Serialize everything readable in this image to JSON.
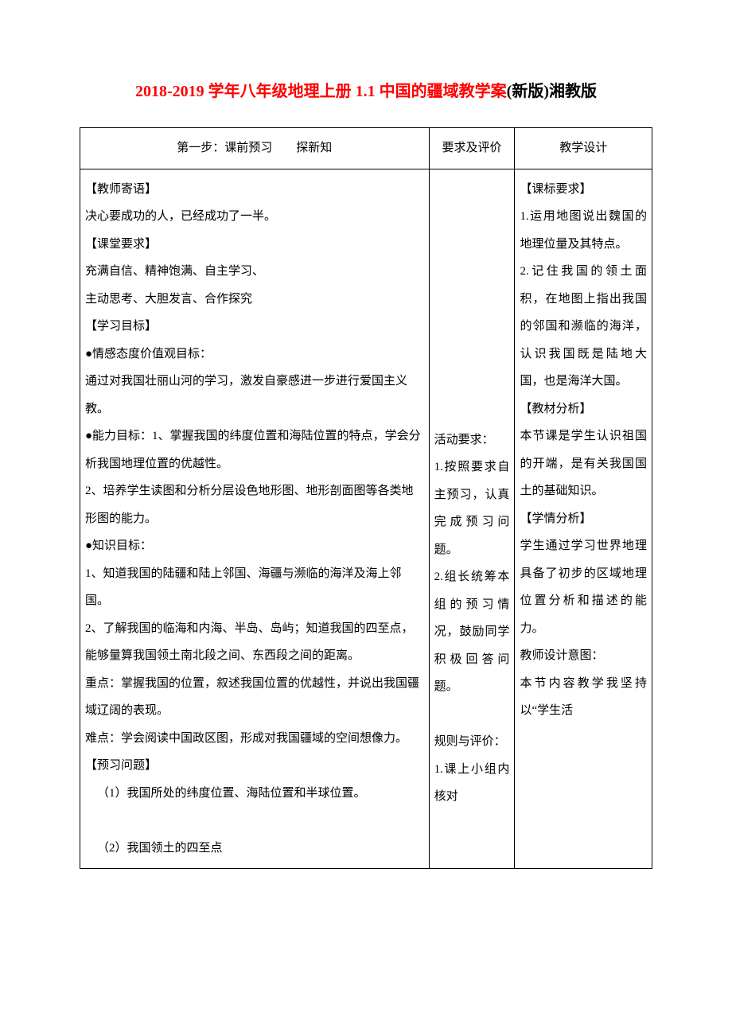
{
  "title": {
    "red_part": "2018-2019 学年八年级地理上册 1.1 中国的疆域教学案",
    "black_part": "(新版)湘教版"
  },
  "table": {
    "header": {
      "col1": "第一步：课前预习　　探新知",
      "col2": "要求及评价",
      "col3": "教学设计"
    },
    "body": {
      "col1": {
        "section1_title": "【教师寄语】",
        "section1_text": "决心要成功的人，已经成功了一半。",
        "section2_title": "【课堂要求】",
        "section2_text1": "充满自信、精神饱满、自主学习、",
        "section2_text2": "主动思考、大胆发言、合作探究",
        "section3_title": "【学习目标】",
        "emotion_title": "●情感态度价值观目标：",
        "emotion_text": "通过对我国壮丽山河的学习，激发自豪感进一步进行爱国主义教。",
        "ability_title": "●能力目标：1、掌握我国的纬度位置和海陆位置的特点，学会分析我国地理位置的优越性。",
        "ability_text2": "2、培养学生读图和分析分层设色地形图、地形剖面图等各类地形图的能力。",
        "knowledge_title": "●知识目标：",
        "knowledge_text1": "1、知道我国的陆疆和陆上邻国、海疆与濒临的海洋及海上邻国。",
        "knowledge_text2": "2、了解我国的临海和内海、半岛、岛屿；知道我国的四至点，能够量算我国领土南北段之间、东西段之间的距离。",
        "key_text": "重点：掌握我国的位置，叙述我国位置的优越性，并说出我国疆域辽阔的表现。",
        "difficult_text": "难点：学会阅读中国政区图，形成对我国疆域的空间想像力。",
        "preview_title": "【预习问题】",
        "preview_q1": "（1）我国所处的纬度位置、海陆位置和半球位置。",
        "preview_q2": "（2）我国领土的四至点"
      },
      "col2": {
        "activity_title": "活动要求：",
        "activity_text1": "1.按照要求自主预习，认真完成预习问题。",
        "activity_text2": "2.组长统筹本组的预习情况，鼓励同学积极回答问题。",
        "rule_title": "规则与评价：",
        "rule_text1": "1.课上小组内核对"
      },
      "col3": {
        "standard_title": "【课标要求】",
        "standard_text1": "1.运用地图说出魏国的地理位量及其特点。",
        "standard_text2": "2.记住我国的领土面积，在地图上指出我国的邻国和濒临的海洋，认识我国既是陆地大国，也是海洋大国。",
        "material_title": "【教材分析】",
        "material_text": "本节课是学生认识祖国的开端，是有关我国国土的基础知识。",
        "student_title": "【学情分析】",
        "student_text": "学生通过学习世界地理具备了初步的区域地理位置分析和描述的能力。",
        "intent_title": "教师设计意图：",
        "intent_text": "本节内容教学我坚持以“学生活"
      }
    }
  }
}
